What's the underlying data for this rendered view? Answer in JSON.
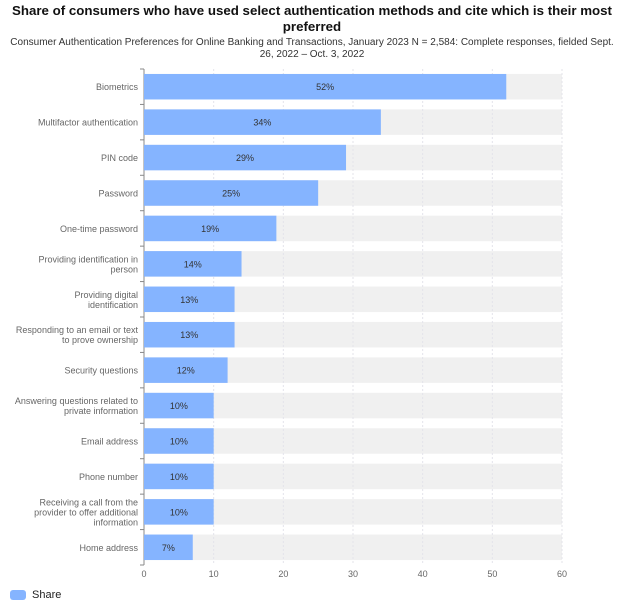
{
  "chart_data": {
    "type": "bar",
    "orientation": "horizontal",
    "title": "Share of consumers who have used select authentication methods and cite which is their most preferred",
    "subtitle": "Consumer Authentication Preferences for Online Banking and Transactions, January 2023 N = 2,584: Complete responses, fielded Sept. 26, 2022 – Oct. 3, 2022",
    "categories": [
      "Biometrics",
      "Multifactor authentication",
      "PIN code",
      "Password",
      "One-time password",
      "Providing identification in person",
      "Providing digital identification",
      "Responding to an email or text to prove ownership",
      "Security questions",
      "Answering questions related to private information",
      "Email address",
      "Phone number",
      "Receiving a call from the provider to offer additional information",
      "Home address"
    ],
    "category_lines": [
      [
        "Biometrics"
      ],
      [
        "Multifactor authentication"
      ],
      [
        "PIN code"
      ],
      [
        "Password"
      ],
      [
        "One-time password"
      ],
      [
        "Providing identification in",
        "person"
      ],
      [
        "Providing digital",
        "identification"
      ],
      [
        "Responding to an email or text",
        "to prove ownership"
      ],
      [
        "Security questions"
      ],
      [
        "Answering questions related to",
        "private information"
      ],
      [
        "Email address"
      ],
      [
        "Phone number"
      ],
      [
        "Receiving a call from the",
        "provider to offer additional",
        "information"
      ],
      [
        "Home address"
      ]
    ],
    "series": [
      {
        "name": "Share",
        "values": [
          52,
          34,
          29,
          25,
          19,
          14,
          13,
          13,
          12,
          10,
          10,
          10,
          10,
          7
        ]
      }
    ],
    "data_labels": [
      "52%",
      "34%",
      "29%",
      "25%",
      "19%",
      "14%",
      "13%",
      "13%",
      "12%",
      "10%",
      "10%",
      "10%",
      "10%",
      "7%"
    ],
    "xlim": [
      0,
      60
    ],
    "xticks": [
      0,
      10,
      20,
      30,
      40,
      50,
      60
    ],
    "grid": true,
    "legend": "bottom-left",
    "colors": {
      "bar": "#85b4ff",
      "background_bar": "#f0f0f0"
    }
  }
}
